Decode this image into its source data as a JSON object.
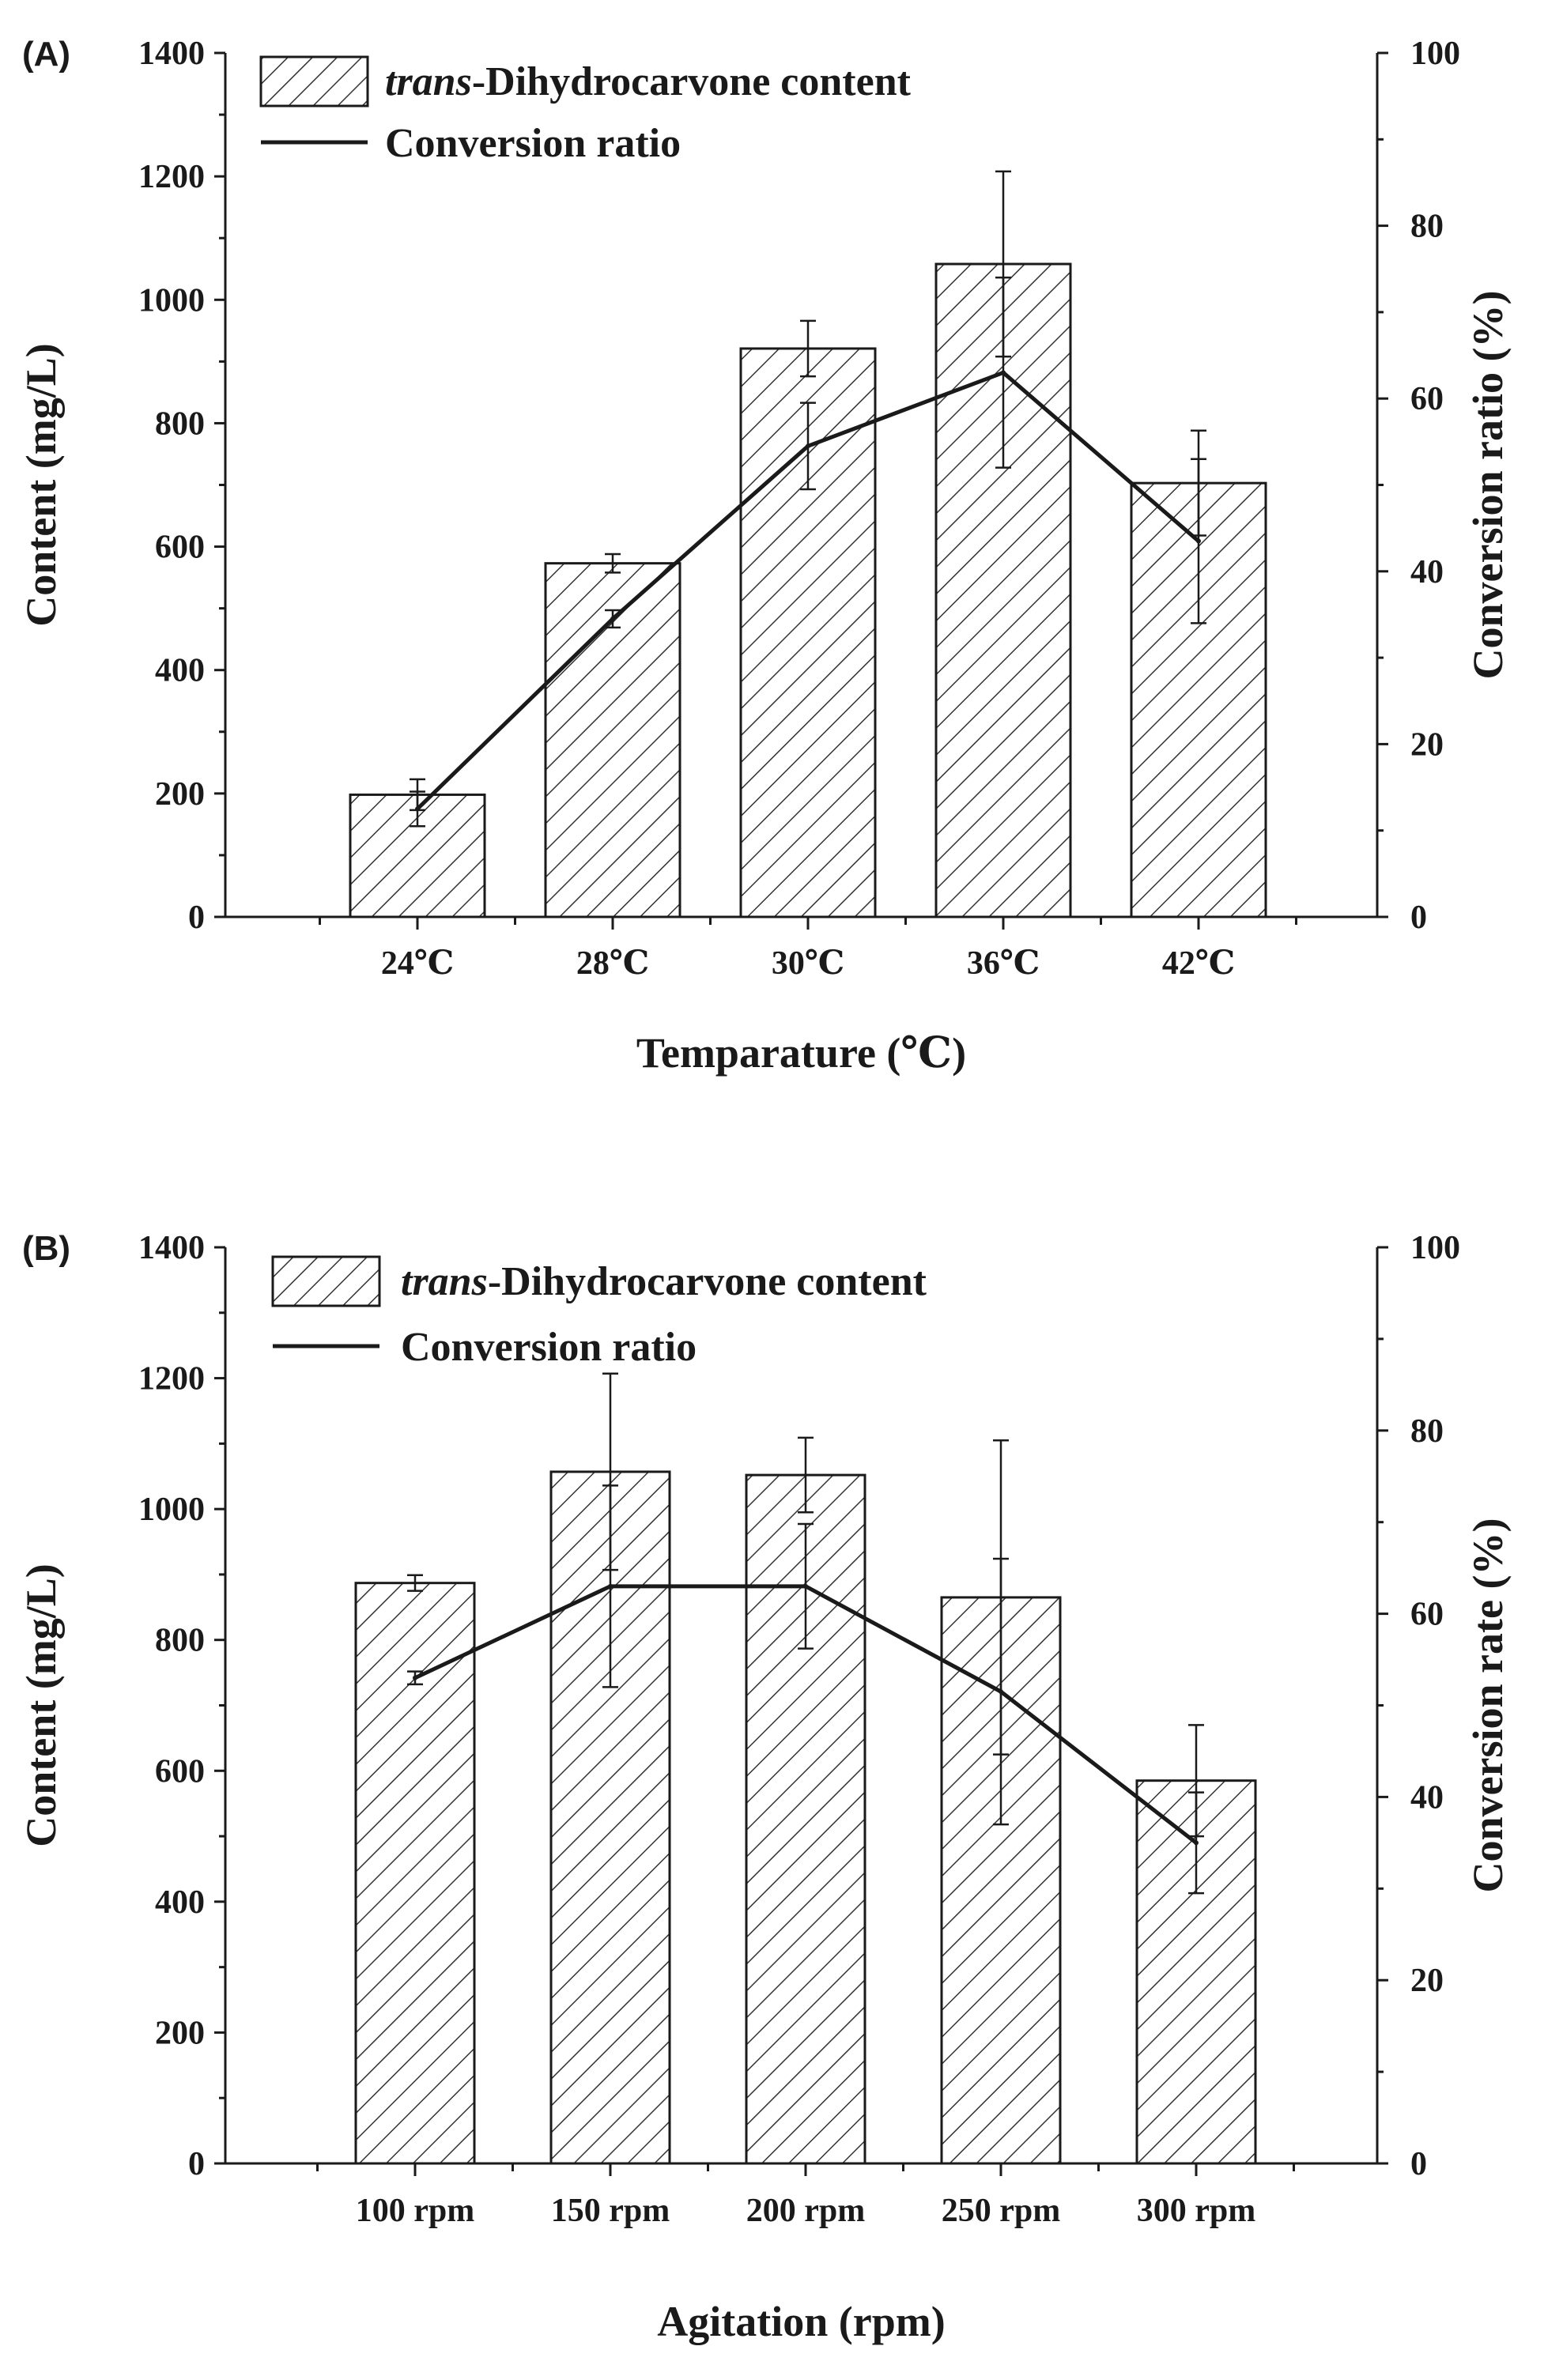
{
  "figure": {
    "panels": [
      "(A)",
      "(B)"
    ]
  },
  "colors": {
    "ink": "#1a1a1a",
    "background": "#ffffff",
    "bar_fill": "#ffffff"
  },
  "chart_data": [
    {
      "type": "bar",
      "panel_label": "(A)",
      "categories": [
        "24℃",
        "28℃",
        "30℃",
        "36℃",
        "42℃"
      ],
      "xlabel": "Temparature (℃)",
      "ylabel": "Content (mg/L)",
      "ylabel_right": "Conversion ratio (%)",
      "ylim": [
        0,
        1400
      ],
      "yticks": [
        "0",
        "200",
        "400",
        "600",
        "800",
        "1000",
        "1200",
        "1400"
      ],
      "ylim_right": [
        0,
        100
      ],
      "yticks_right": [
        "0",
        "20",
        "40",
        "60",
        "80",
        "100"
      ],
      "legend": {
        "bar_label_italic": "trans",
        "bar_label_rest": "-Dihydrocarvone content",
        "line_label": "Conversion ratio",
        "placement": "top-left"
      },
      "series": [
        {
          "name": "trans-Dihydrocarvone content",
          "kind": "bar",
          "axis": "left",
          "values": [
            198,
            573,
            921,
            1058,
            703
          ],
          "errors": [
            25,
            15,
            45,
            150,
            85
          ]
        },
        {
          "name": "Conversion ratio",
          "kind": "line",
          "axis": "right",
          "values": [
            12.5,
            34.5,
            54.5,
            63,
            43.5
          ],
          "errors": [
            2,
            1,
            5,
            11,
            9.5
          ]
        }
      ]
    },
    {
      "type": "bar",
      "panel_label": "(B)",
      "categories": [
        "100 rpm",
        "150 rpm",
        "200 rpm",
        "250 rpm",
        "300 rpm"
      ],
      "xlabel": "Agitation (rpm)",
      "ylabel": "Content (mg/L)",
      "ylabel_right": "Conversion rate (%)",
      "ylim": [
        0,
        1400
      ],
      "yticks": [
        "0",
        "200",
        "400",
        "600",
        "800",
        "1000",
        "1200",
        "1400"
      ],
      "ylim_right": [
        0,
        100
      ],
      "yticks_right": [
        "0",
        "20",
        "40",
        "60",
        "80",
        "100"
      ],
      "legend": {
        "bar_label_italic": "trans",
        "bar_label_rest": "-Dihydrocarvone content",
        "line_label": "Conversion ratio",
        "placement": "top-left"
      },
      "series": [
        {
          "name": "trans-Dihydrocarvone content",
          "kind": "bar",
          "axis": "left",
          "values": [
            887,
            1057,
            1052,
            865,
            585
          ],
          "errors": [
            12,
            150,
            57,
            240,
            85
          ]
        },
        {
          "name": "Conversion ratio",
          "kind": "line",
          "axis": "right",
          "values": [
            53,
            63,
            63,
            51.5,
            35
          ],
          "errors": [
            0.7,
            11,
            6.8,
            14.5,
            5.5
          ]
        }
      ]
    }
  ]
}
